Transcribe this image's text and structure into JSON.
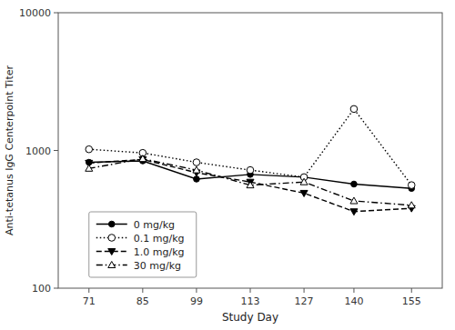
{
  "chart_data": {
    "type": "line",
    "x": [
      71,
      85,
      99,
      113,
      127,
      140,
      155
    ],
    "series": [
      {
        "name": "0 mg/kg",
        "color": "black",
        "marker": "circle",
        "line_style": "solid",
        "values": [
          820,
          840,
          620,
          670,
          640,
          570,
          530
        ]
      },
      {
        "name": "0.1 mg/kg",
        "color": "black",
        "marker": "open-circle",
        "line_style": "dotted",
        "values": [
          1020,
          960,
          820,
          720,
          640,
          2000,
          560
        ]
      },
      {
        "name": "1.0 mg/kg",
        "color": "black",
        "marker": "triangle-down",
        "line_style": "dashed",
        "values": [
          810,
          860,
          690,
          590,
          490,
          360,
          380
        ]
      },
      {
        "name": "30 mg/kg",
        "color": "black",
        "marker": "open-triangle-up",
        "line_style": "dashdot",
        "values": [
          740,
          870,
          720,
          560,
          590,
          430,
          400
        ]
      }
    ],
    "x_label": "Study Day",
    "y_label": "Anti-tetanus IgG Centerpoint Titer",
    "xlim": [
      63,
      163
    ],
    "xticks": [
      71,
      85,
      99,
      113,
      127,
      140,
      155
    ],
    "ylim": [
      100,
      10000
    ],
    "yticks": [
      100,
      1000,
      10000
    ],
    "log": "y",
    "grid": false,
    "legend": "lower left"
  }
}
